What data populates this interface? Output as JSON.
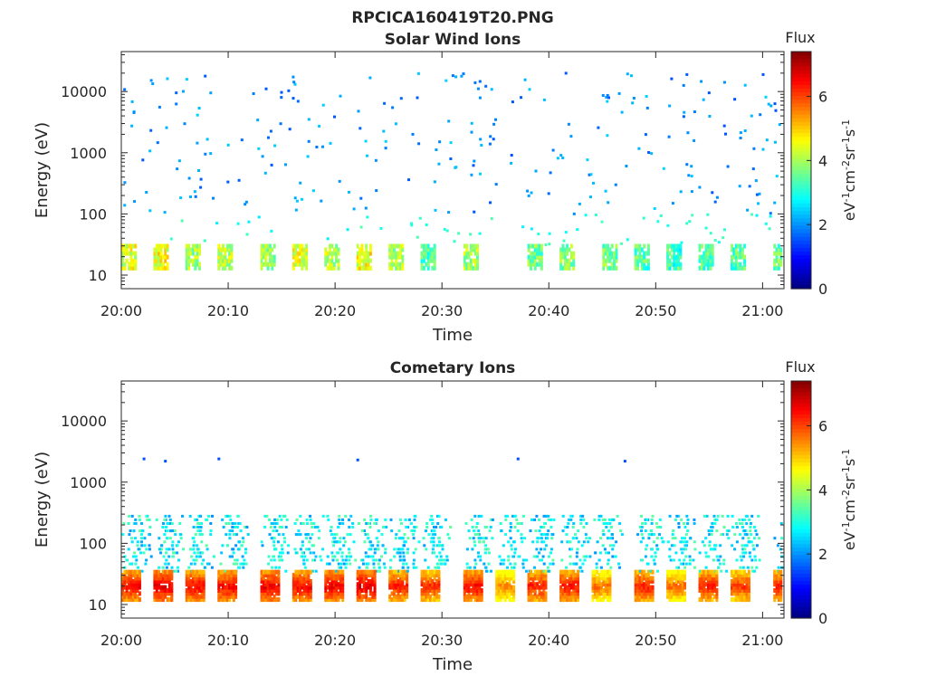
{
  "figure": {
    "title": "RPCICA160419T20.PNG"
  },
  "colormap": {
    "name": "jet",
    "stops": [
      "#00007f",
      "#0000ff",
      "#007fff",
      "#00ffff",
      "#7fff7f",
      "#ffff00",
      "#ff7f00",
      "#ff0000",
      "#7f0000"
    ],
    "label": "Flux",
    "unit": "eV-1cm-2sr-1s-1",
    "range": [
      0,
      7.4
    ],
    "ticks": [
      0,
      2,
      4,
      6
    ],
    "tick_labels": [
      "0",
      "2",
      "4",
      "6"
    ]
  },
  "chart_data": [
    {
      "type": "heatmap",
      "title": "Solar Wind Ions",
      "xlabel": "Time",
      "ylabel": "Energy (eV)",
      "y_scale": "log",
      "ylim": [
        6,
        45000
      ],
      "xlim": [
        "20:00",
        "21:02"
      ],
      "x_ticks": [
        "20:00",
        "20:10",
        "20:20",
        "20:30",
        "20:40",
        "20:50",
        "21:00"
      ],
      "y_ticks": [
        10,
        100,
        1000,
        10000
      ],
      "y_tick_labels": [
        "10",
        "100",
        "1000",
        "10000"
      ],
      "colorbar_label": "Flux",
      "description_of_bands": {
        "low_band_energy_eV": [
          13,
          30
        ],
        "low_band_flux": [
          3.5,
          5.3
        ],
        "sparse_high_energy_range_eV": [
          100,
          20000
        ],
        "sparse_flux": [
          1.5,
          2.5
        ]
      },
      "bursts": [
        {
          "t": "20:00",
          "flux": 5.0
        },
        {
          "t": "20:03",
          "flux": 5.2
        },
        {
          "t": "20:06",
          "flux": 4.6
        },
        {
          "t": "20:09",
          "flux": 4.8
        },
        {
          "t": "20:13",
          "flux": 4.5
        },
        {
          "t": "20:16",
          "flux": 5.0
        },
        {
          "t": "20:19",
          "flux": 4.8
        },
        {
          "t": "20:22",
          "flux": 5.2
        },
        {
          "t": "20:25",
          "flux": 4.6
        },
        {
          "t": "20:28",
          "flux": 4.0
        },
        {
          "t": "20:32",
          "flux": 4.6
        },
        {
          "t": "20:38",
          "flux": 4.2
        },
        {
          "t": "20:41",
          "flux": 4.4
        },
        {
          "t": "20:45",
          "flux": 4.2
        },
        {
          "t": "20:48",
          "flux": 4.0
        },
        {
          "t": "20:51",
          "flux": 3.9
        },
        {
          "t": "20:54",
          "flux": 4.0
        },
        {
          "t": "20:57",
          "flux": 4.0
        },
        {
          "t": "21:01",
          "flux": 4.2
        }
      ]
    },
    {
      "type": "heatmap",
      "title": "Cometary Ions",
      "xlabel": "Time",
      "ylabel": "Energy (eV)",
      "y_scale": "log",
      "ylim": [
        6,
        45000
      ],
      "xlim": [
        "20:00",
        "21:02"
      ],
      "x_ticks": [
        "20:00",
        "20:10",
        "20:20",
        "20:30",
        "20:40",
        "20:50",
        "21:00"
      ],
      "y_ticks": [
        10,
        100,
        1000,
        10000
      ],
      "y_tick_labels": [
        "10",
        "100",
        "1000",
        "10000"
      ],
      "colorbar_label": "Flux",
      "description_of_bands": {
        "core_band_energy_eV": [
          12,
          35
        ],
        "core_band_flux": [
          5.5,
          7.0
        ],
        "upper_band_energy_eV": [
          35,
          300
        ],
        "upper_band_flux": [
          2.0,
          3.5
        ],
        "isolated_points": [
          {
            "t": "20:02",
            "energy": 2400,
            "flux": 1.5
          },
          {
            "t": "20:04",
            "energy": 2200,
            "flux": 1.5
          },
          {
            "t": "20:09",
            "energy": 2400,
            "flux": 1.5
          },
          {
            "t": "20:22",
            "energy": 2300,
            "flux": 1.5
          },
          {
            "t": "20:37",
            "energy": 2400,
            "flux": 1.5
          },
          {
            "t": "20:47",
            "energy": 2200,
            "flux": 1.5
          }
        ]
      },
      "bursts": [
        {
          "t": "20:00",
          "flux": 6.8
        },
        {
          "t": "20:03",
          "flux": 7.0
        },
        {
          "t": "20:06",
          "flux": 6.8
        },
        {
          "t": "20:09",
          "flux": 6.8
        },
        {
          "t": "20:13",
          "flux": 6.9
        },
        {
          "t": "20:16",
          "flux": 6.8
        },
        {
          "t": "20:19",
          "flux": 6.9
        },
        {
          "t": "20:22",
          "flux": 7.0
        },
        {
          "t": "20:25",
          "flux": 6.6
        },
        {
          "t": "20:28",
          "flux": 6.5
        },
        {
          "t": "20:32",
          "flux": 6.8
        },
        {
          "t": "20:35",
          "flux": 5.8
        },
        {
          "t": "20:38",
          "flux": 6.6
        },
        {
          "t": "20:41",
          "flux": 6.7
        },
        {
          "t": "20:44",
          "flux": 6.0
        },
        {
          "t": "20:48",
          "flux": 6.6
        },
        {
          "t": "20:51",
          "flux": 6.0
        },
        {
          "t": "20:54",
          "flux": 6.6
        },
        {
          "t": "20:57",
          "flux": 6.4
        },
        {
          "t": "21:01",
          "flux": 6.6
        }
      ]
    }
  ]
}
